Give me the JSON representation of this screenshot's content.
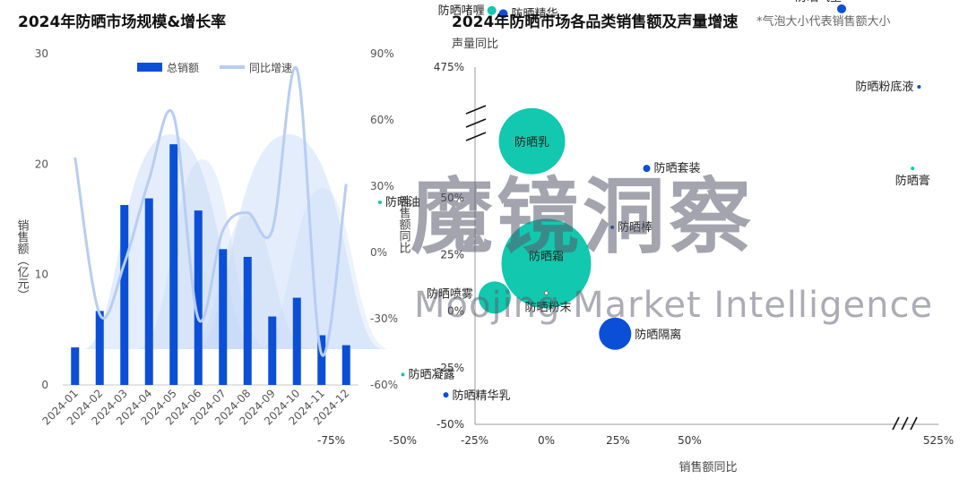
{
  "left_chart": {
    "title": "2024年防晒市场规模&增长率",
    "ylabel_left": "销售额（亿元）",
    "ylabel_right": "销售额同比",
    "legend": {
      "bar": "总销额",
      "line": "同比增速"
    },
    "colors": {
      "bar": "#0a4fd6",
      "line": "#b7cdf3",
      "band": "#c4d6f7"
    }
  },
  "right_chart": {
    "title": "2024年防晒市场各品类销售额及声量增速",
    "note": "*气泡大小代表销售额大小",
    "ylabel": "声量同比",
    "xlabel": "销售额同比",
    "colors": {
      "blue": "#0a4fd6",
      "teal": "#12c8ae"
    }
  },
  "watermark": {
    "cn": "魔镜洞察",
    "en": "Moojing Market Intelligence"
  },
  "chart_data": [
    {
      "type": "bar",
      "title": "2024年防晒市场规模&增长率",
      "categories": [
        "2024-01",
        "2024-02",
        "2024-03",
        "2024-04",
        "2024-05",
        "2024-06",
        "2024-07",
        "2024-08",
        "2024-09",
        "2024-10",
        "2024-11",
        "2024-12"
      ],
      "series": [
        {
          "name": "总销额",
          "axis": "left",
          "values": [
            3.4,
            6.7,
            16.3,
            16.9,
            21.8,
            15.8,
            12.3,
            11.6,
            6.2,
            7.9,
            4.5,
            3.6
          ]
        },
        {
          "name": "同比增速",
          "type": "line",
          "axis": "right",
          "values": [
            43,
            -28,
            -5,
            33,
            62,
            -30,
            10,
            18,
            10,
            83,
            -46,
            31
          ]
        }
      ],
      "ylim_left": [
        0,
        30
      ],
      "yticks_left": [
        "0",
        "10",
        "20",
        "30"
      ],
      "ylim_right": [
        -60,
        90
      ],
      "yticks_right": [
        "-60%",
        "-30%",
        "0%",
        "30%",
        "60%",
        "90%"
      ],
      "xlabel": "",
      "ylabel": "销售额（亿元）",
      "ylabel_right": "销售额同比"
    },
    {
      "type": "scatter",
      "title": "2024年防晒市场各品类销售额及声量增速",
      "xlabel": "销售额同比",
      "ylabel": "声量同比",
      "x_ticks": [
        "-75%",
        "-50%",
        "-25%",
        "0%",
        "25%",
        "50%",
        "525%"
      ],
      "y_ticks": [
        "-50%",
        "-25%",
        "0%",
        "25%",
        "50%",
        "475%"
      ],
      "xlim": [
        -75,
        525
      ],
      "ylim": [
        -50,
        475
      ],
      "axis_breaks": {
        "x": "after 75%",
        "y": "after 100%"
      },
      "points": [
        {
          "name": "防晒精华",
          "x": -15,
          "y": 140,
          "size": 5,
          "color": "blue"
        },
        {
          "name": "防晒啫喱",
          "x": -19,
          "y": 120,
          "size": 5,
          "color": "teal"
        },
        {
          "name": "防晒乳",
          "x": -5,
          "y": 75,
          "size": 37,
          "color": "teal"
        },
        {
          "name": "防晒油",
          "x": -58,
          "y": 48,
          "size": 2,
          "color": "teal"
        },
        {
          "name": "防晒霜",
          "x": 0,
          "y": 21,
          "size": 50,
          "color": "teal"
        },
        {
          "name": "防晒喷雾",
          "x": -18,
          "y": 6,
          "size": 18,
          "color": "teal"
        },
        {
          "name": "防晒粉末",
          "x": 0,
          "y": 8,
          "size": 2,
          "color": "white"
        },
        {
          "name": "防晒隔离",
          "x": 24,
          "y": -10,
          "size": 18,
          "color": "blue"
        },
        {
          "name": "防晒凝露",
          "x": -50,
          "y": -28,
          "size": 2,
          "color": "teal"
        },
        {
          "name": "防晒精华乳",
          "x": -35,
          "y": -37,
          "size": 3,
          "color": "blue"
        },
        {
          "name": "防晒套装",
          "x": 35,
          "y": 63,
          "size": 4,
          "color": "blue"
        },
        {
          "name": "防晒棒",
          "x": 23,
          "y": 37,
          "size": 2,
          "color": "blue"
        },
        {
          "name": "防晒气垫",
          "x": 300,
          "y": 109,
          "size": 5,
          "color": "blue"
        },
        {
          "name": "防晒粉底液",
          "x": 480,
          "y": 99,
          "size": 2,
          "color": "blue"
        },
        {
          "name": "防晒膏",
          "x": 465,
          "y": 63,
          "size": 2,
          "color": "teal"
        }
      ]
    }
  ]
}
